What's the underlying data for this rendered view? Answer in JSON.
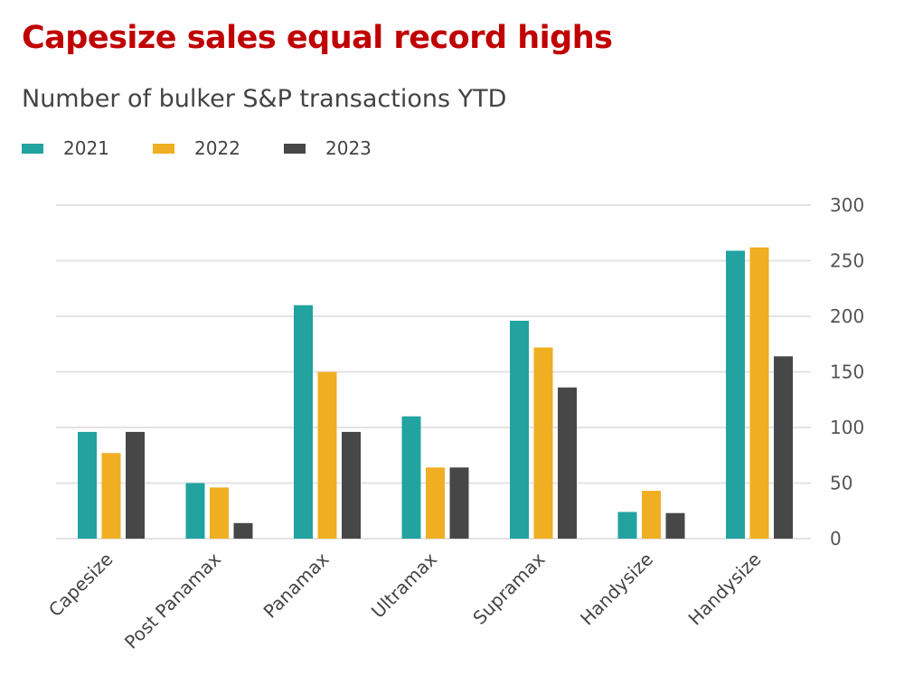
{
  "chart_data": {
    "type": "bar",
    "title": "Capesize sales equal record highs",
    "subtitle": "Number of bulker S&P transactions YTD",
    "categories": [
      "Capesize",
      "Post Panamax",
      "Panamax",
      "Ultramax",
      "Supramax",
      "Handysize",
      "Handysize"
    ],
    "series": [
      {
        "name": "2021",
        "color": "#22a3a0",
        "values": [
          96,
          50,
          210,
          110,
          196,
          24,
          259
        ]
      },
      {
        "name": "2022",
        "color": "#f0ae22",
        "values": [
          77,
          46,
          150,
          64,
          172,
          43,
          262
        ]
      },
      {
        "name": "2023",
        "color": "#474747",
        "values": [
          96,
          14,
          96,
          64,
          136,
          23,
          164
        ]
      }
    ],
    "ylim": [
      0,
      300
    ],
    "yticks": [
      0,
      50,
      100,
      150,
      200,
      250,
      300
    ],
    "yaxis_position": "right",
    "grid": true,
    "legend_placement": "top-left",
    "title_color": "#c00000"
  }
}
